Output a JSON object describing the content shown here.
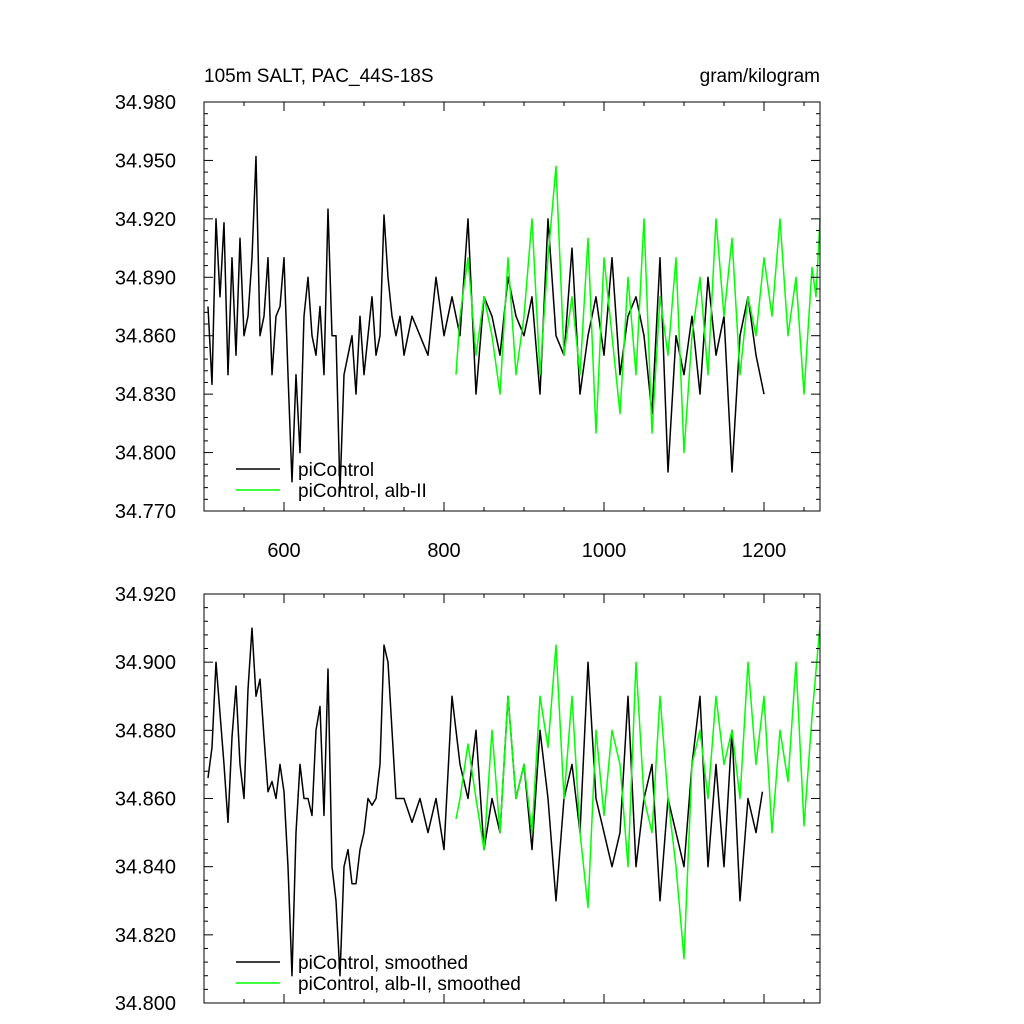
{
  "chart_data": [
    {
      "type": "line",
      "title_left": "105m SALT, PAC_44S-18S",
      "title_right": "gram/kilogram",
      "xlim": [
        500,
        1270
      ],
      "ylim": [
        34.77,
        34.98
      ],
      "xticks": [
        600,
        800,
        1000,
        1200
      ],
      "xtick_labels": [
        "600",
        "800",
        "1000",
        "1200"
      ],
      "yticks": [
        34.77,
        34.8,
        34.83,
        34.86,
        34.89,
        34.92,
        34.95,
        34.98
      ],
      "ytick_labels": [
        "34.770",
        "34.800",
        "34.830",
        "34.860",
        "34.890",
        "34.920",
        "34.950",
        "34.980"
      ],
      "grid": false,
      "legend_position": "bottom-left",
      "series": [
        {
          "name": "piControl",
          "color": "#000000",
          "x": [
            505,
            510,
            515,
            520,
            525,
            530,
            535,
            540,
            545,
            550,
            555,
            560,
            565,
            570,
            575,
            580,
            585,
            590,
            595,
            600,
            605,
            610,
            615,
            620,
            625,
            630,
            635,
            640,
            645,
            650,
            655,
            660,
            665,
            670,
            675,
            680,
            685,
            690,
            695,
            700,
            705,
            710,
            715,
            720,
            725,
            730,
            735,
            740,
            745,
            750,
            760,
            770,
            780,
            790,
            800,
            810,
            820,
            830,
            840,
            850,
            860,
            870,
            880,
            890,
            900,
            910,
            920,
            930,
            940,
            950,
            960,
            970,
            980,
            990,
            1000,
            1010,
            1020,
            1030,
            1040,
            1050,
            1060,
            1070,
            1080,
            1090,
            1100,
            1110,
            1120,
            1130,
            1140,
            1150,
            1160,
            1170,
            1180,
            1190,
            1200
          ],
          "y": [
            34.875,
            34.835,
            34.92,
            34.88,
            34.918,
            34.84,
            34.9,
            34.85,
            34.91,
            34.86,
            34.87,
            34.9,
            34.952,
            34.86,
            34.87,
            34.9,
            34.84,
            34.87,
            34.875,
            34.9,
            34.84,
            34.785,
            34.84,
            34.8,
            34.87,
            34.89,
            34.86,
            34.85,
            34.875,
            34.84,
            34.925,
            34.86,
            34.86,
            34.78,
            34.84,
            34.85,
            34.86,
            34.83,
            34.87,
            34.84,
            34.86,
            34.88,
            34.85,
            34.86,
            34.922,
            34.89,
            34.87,
            34.86,
            34.87,
            34.85,
            34.87,
            34.86,
            34.85,
            34.89,
            34.86,
            34.88,
            34.86,
            34.92,
            34.83,
            34.88,
            34.87,
            34.85,
            34.89,
            34.87,
            34.86,
            34.88,
            34.83,
            34.92,
            34.86,
            34.85,
            34.905,
            34.83,
            34.86,
            34.88,
            34.85,
            34.9,
            34.84,
            34.87,
            34.88,
            34.86,
            34.82,
            34.9,
            34.79,
            34.86,
            34.84,
            34.87,
            34.83,
            34.89,
            34.85,
            34.87,
            34.79,
            34.86,
            34.88,
            34.85,
            34.83
          ]
        },
        {
          "name": "piControl, alb-II",
          "color": "#00ff00",
          "x": [
            815,
            820,
            830,
            840,
            850,
            860,
            870,
            880,
            890,
            900,
            910,
            920,
            930,
            940,
            950,
            960,
            970,
            980,
            990,
            1000,
            1010,
            1020,
            1030,
            1040,
            1050,
            1060,
            1070,
            1080,
            1090,
            1100,
            1110,
            1120,
            1130,
            1140,
            1150,
            1160,
            1170,
            1180,
            1190,
            1200,
            1210,
            1220,
            1230,
            1240,
            1250,
            1260,
            1265,
            1270
          ],
          "y": [
            34.84,
            34.87,
            34.9,
            34.85,
            34.88,
            34.86,
            34.83,
            34.9,
            34.84,
            34.87,
            34.92,
            34.84,
            34.9,
            34.947,
            34.85,
            34.88,
            34.84,
            34.91,
            34.81,
            34.9,
            34.86,
            34.82,
            34.89,
            34.84,
            34.92,
            34.81,
            34.88,
            34.85,
            34.9,
            34.8,
            34.86,
            34.89,
            34.84,
            34.92,
            34.87,
            34.91,
            34.84,
            34.88,
            34.86,
            34.9,
            34.87,
            34.92,
            34.86,
            34.89,
            34.83,
            34.895,
            34.88,
            34.92
          ]
        }
      ]
    },
    {
      "type": "line",
      "xlim": [
        500,
        1270
      ],
      "ylim": [
        34.8,
        34.92
      ],
      "xticks": [
        600,
        800,
        1000,
        1200
      ],
      "yticks": [
        34.8,
        34.82,
        34.84,
        34.86,
        34.88,
        34.9,
        34.92
      ],
      "ytick_labels": [
        "34.800",
        "34.820",
        "34.840",
        "34.860",
        "34.880",
        "34.900",
        "34.920"
      ],
      "grid": false,
      "legend_position": "bottom-left",
      "series": [
        {
          "name": "piControl, smoothed",
          "color": "#000000",
          "x": [
            505,
            510,
            515,
            520,
            525,
            530,
            535,
            540,
            545,
            550,
            555,
            560,
            565,
            570,
            575,
            580,
            585,
            590,
            595,
            600,
            605,
            610,
            615,
            620,
            625,
            630,
            635,
            640,
            645,
            650,
            655,
            660,
            665,
            670,
            675,
            680,
            685,
            690,
            695,
            700,
            705,
            710,
            715,
            720,
            725,
            730,
            740,
            750,
            760,
            770,
            780,
            790,
            800,
            810,
            820,
            830,
            840,
            850,
            860,
            870,
            880,
            890,
            900,
            910,
            920,
            930,
            940,
            950,
            960,
            970,
            980,
            990,
            1000,
            1010,
            1020,
            1030,
            1040,
            1050,
            1060,
            1070,
            1080,
            1090,
            1100,
            1110,
            1120,
            1130,
            1140,
            1150,
            1160,
            1170,
            1180,
            1190,
            1198
          ],
          "y": [
            34.866,
            34.875,
            34.9,
            34.885,
            34.87,
            34.853,
            34.878,
            34.893,
            34.87,
            34.86,
            34.892,
            34.91,
            34.89,
            34.895,
            34.878,
            34.862,
            34.865,
            34.86,
            34.87,
            34.862,
            34.84,
            34.808,
            34.85,
            34.87,
            34.86,
            34.86,
            34.855,
            34.88,
            34.887,
            34.855,
            34.898,
            34.84,
            34.83,
            34.808,
            34.84,
            34.845,
            34.835,
            34.835,
            34.845,
            34.85,
            34.86,
            34.858,
            34.86,
            34.87,
            34.905,
            34.9,
            34.86,
            34.86,
            34.853,
            34.86,
            34.85,
            34.86,
            34.845,
            34.89,
            34.87,
            34.86,
            34.88,
            34.845,
            34.86,
            34.85,
            34.89,
            34.86,
            34.87,
            34.845,
            34.88,
            34.86,
            34.83,
            34.86,
            34.87,
            34.85,
            34.9,
            34.86,
            34.85,
            34.84,
            34.85,
            34.89,
            34.84,
            34.86,
            34.87,
            34.83,
            34.86,
            34.85,
            34.84,
            34.87,
            34.89,
            34.84,
            34.87,
            34.84,
            34.88,
            34.83,
            34.86,
            34.85,
            34.862
          ]
        },
        {
          "name": "piControl, alb-II, smoothed",
          "color": "#00ff00",
          "x": [
            815,
            820,
            830,
            840,
            850,
            860,
            870,
            880,
            890,
            900,
            910,
            920,
            930,
            940,
            950,
            960,
            970,
            980,
            990,
            1000,
            1010,
            1020,
            1030,
            1040,
            1050,
            1060,
            1070,
            1080,
            1090,
            1100,
            1110,
            1120,
            1130,
            1140,
            1150,
            1160,
            1170,
            1180,
            1190,
            1200,
            1210,
            1220,
            1230,
            1240,
            1250,
            1260,
            1270
          ],
          "y": [
            34.854,
            34.86,
            34.876,
            34.86,
            34.845,
            34.88,
            34.85,
            34.89,
            34.86,
            34.87,
            34.85,
            34.89,
            34.875,
            34.905,
            34.86,
            34.89,
            34.85,
            34.828,
            34.88,
            34.855,
            34.88,
            34.87,
            34.84,
            34.9,
            34.86,
            34.85,
            34.89,
            34.86,
            34.84,
            34.813,
            34.87,
            34.88,
            34.86,
            34.89,
            34.87,
            34.88,
            34.86,
            34.9,
            34.87,
            34.89,
            34.85,
            34.88,
            34.865,
            34.9,
            34.852,
            34.884,
            34.911
          ]
        }
      ]
    }
  ]
}
